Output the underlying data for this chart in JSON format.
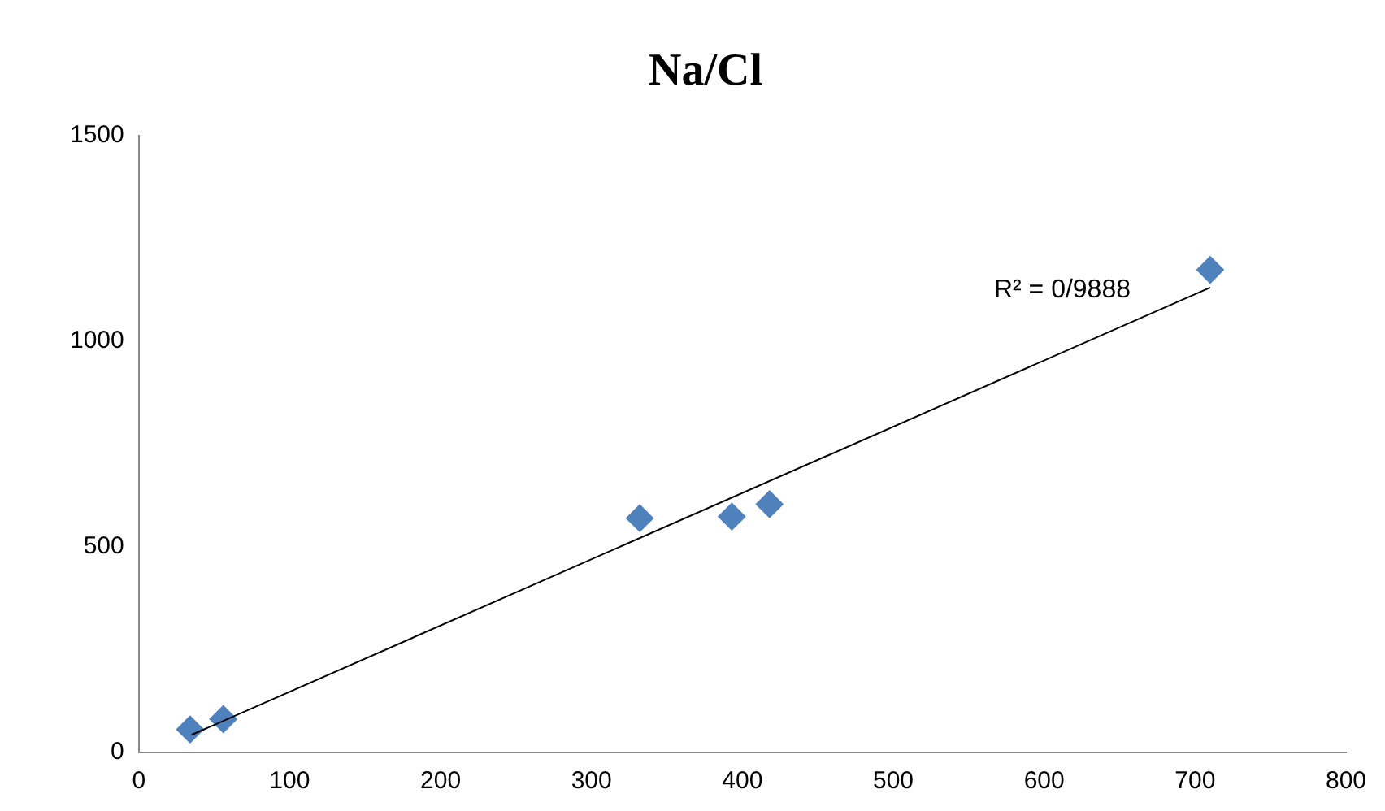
{
  "chart_data": {
    "type": "scatter",
    "title": "Na/Cl",
    "xlim": [
      0,
      800
    ],
    "xticks": [
      0,
      100,
      200,
      300,
      400,
      500,
      600,
      700,
      800
    ],
    "ylim": [
      0,
      1500
    ],
    "yticks": [
      0,
      500,
      1000,
      1500
    ],
    "series": [
      {
        "type": "scatter",
        "marker": "diamond",
        "color": "#4f81bd",
        "x": [
          34,
          56,
          332,
          393,
          418,
          710
        ],
        "values": [
          56,
          81,
          570,
          574,
          604,
          1174
        ]
      },
      {
        "type": "line",
        "marker": "none",
        "color": "#000000",
        "x": [
          35,
          710
        ],
        "values": [
          43,
          1131
        ]
      }
    ],
    "annotations": [
      "R² = 0/9888"
    ]
  }
}
